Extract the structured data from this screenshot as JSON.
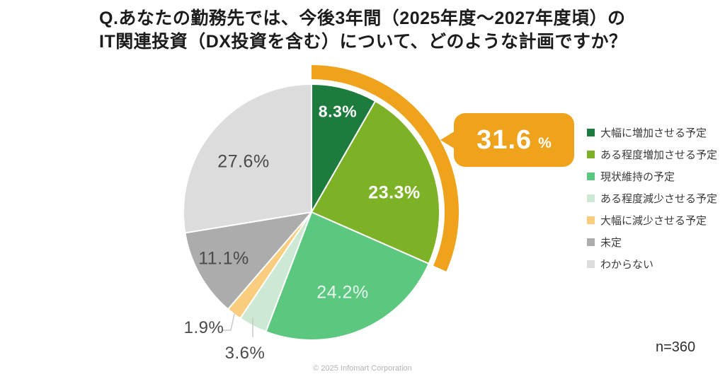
{
  "title": {
    "line1": "Q.あなたの勤務先では、今後3年間（2025年度～2027年度頃）の",
    "line2": "IT関連投資（DX投資を含む）について、どのような計画ですか？"
  },
  "chart_data": {
    "type": "pie",
    "title": "今後3年間（2025年度～2027年度頃）のIT関連投資（DX投資を含む）の計画",
    "direction": "clockwise",
    "start_angle_deg": 0,
    "unit": "%",
    "categories": [
      "大幅に増加させる予定",
      "ある程度増加させる予定",
      "現状維持の予定",
      "ある程度減少させる予定",
      "大幅に減少させる予定",
      "未定",
      "わからない"
    ],
    "values": [
      8.3,
      23.3,
      24.2,
      3.6,
      1.9,
      11.1,
      27.6
    ],
    "labels": [
      "8.3%",
      "23.3%",
      "24.2%",
      "3.6%",
      "1.9%",
      "11.1%",
      "27.6%"
    ],
    "colors": [
      "#1E7B3E",
      "#7DB227",
      "#5CC77F",
      "#CDE9D4",
      "#FACC7D",
      "#ACACAC",
      "#DCDCDC"
    ],
    "legend_position": "right",
    "highlight": {
      "slices": [
        0,
        1
      ],
      "total_value": 31.6,
      "total_label": "31.6",
      "unit": "%",
      "color": "#EFA31C"
    },
    "sample_size": "n=360"
  },
  "footer": {
    "copyright": "© 2025 Infomart Corporation"
  }
}
